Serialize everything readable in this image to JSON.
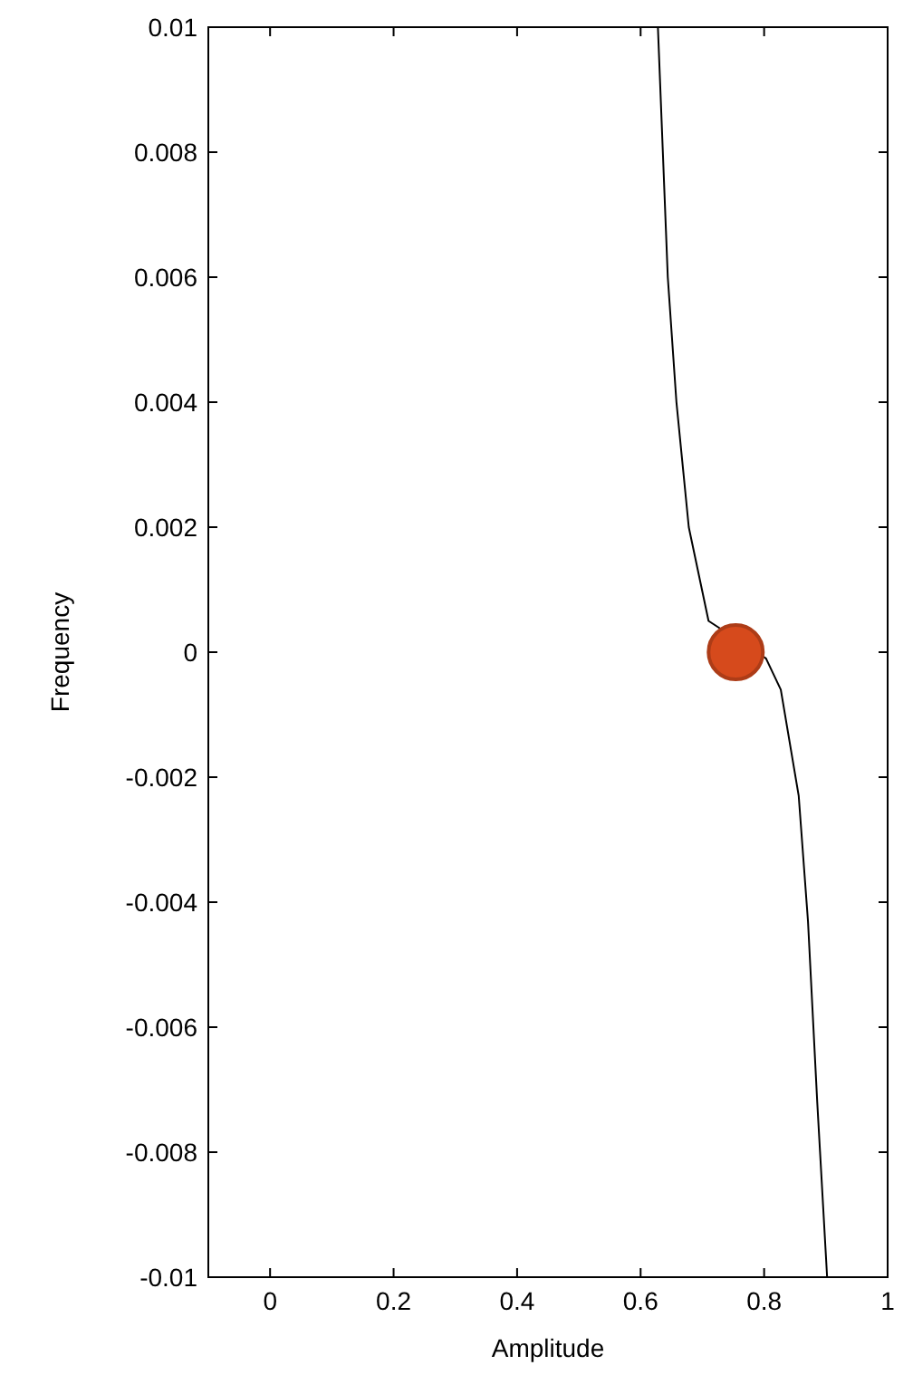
{
  "chart_data": {
    "type": "line",
    "xlabel": "Amplitude",
    "ylabel": "Frequency",
    "xlim": [
      -0.1,
      1
    ],
    "ylim": [
      -0.01,
      0.01
    ],
    "xticks": [
      0,
      0.2,
      0.4,
      0.6,
      0.8,
      1
    ],
    "yticks": [
      -0.01,
      -0.008,
      -0.006,
      -0.004,
      -0.002,
      0,
      0.002,
      0.004,
      0.006,
      0.008,
      0.01
    ],
    "series": [
      {
        "color": "#000000",
        "marker": "none",
        "x": [
          0.628,
          0.644,
          0.658,
          0.678,
          0.71,
          0.803,
          0.827,
          0.856,
          0.871,
          0.886,
          0.902
        ],
        "values": [
          0.01,
          0.006,
          0.004,
          0.002,
          0.0005,
          -0.0001,
          -0.0006,
          -0.0023,
          -0.0043,
          -0.0072,
          -0.01
        ]
      },
      {
        "type": "scatter",
        "color": "#d64a1c",
        "marker": "circle",
        "x": [
          0.754
        ],
        "values": [
          0
        ]
      }
    ]
  }
}
